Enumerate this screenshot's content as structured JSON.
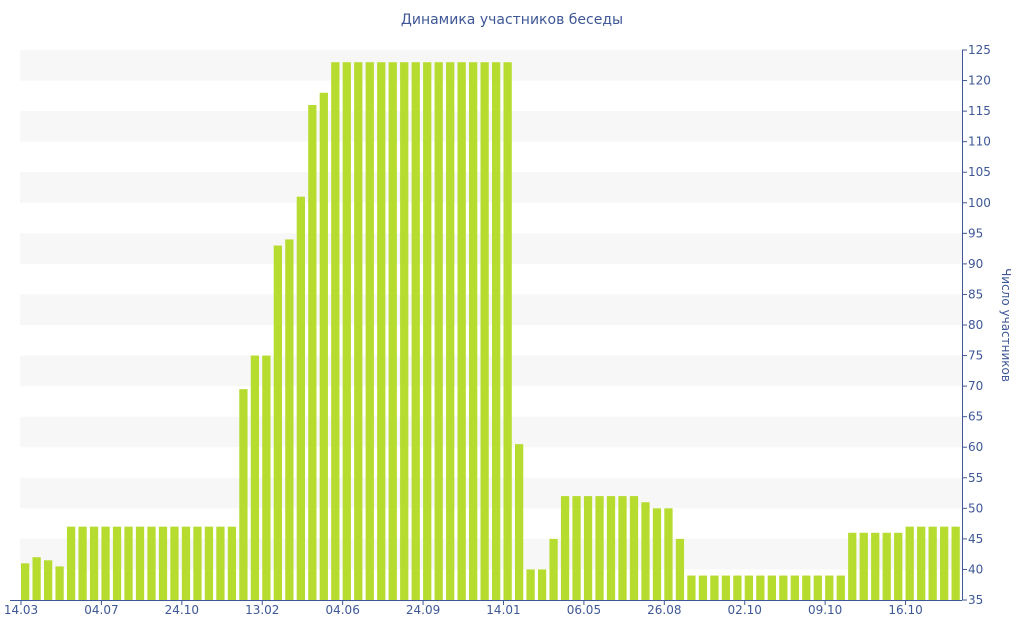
{
  "chart_data": {
    "type": "bar",
    "title": "Динамика участников беседы",
    "xlabel": "",
    "ylabel": "Число участников",
    "ylim": [
      35,
      125
    ],
    "y_ticks": [
      35,
      40,
      45,
      50,
      55,
      60,
      65,
      70,
      75,
      80,
      85,
      90,
      95,
      100,
      105,
      110,
      115,
      120,
      125
    ],
    "y_axis_side": "right",
    "grid": "alternating horizontal bands",
    "bar_color": "#b5dc2e",
    "band_color": "#f7f7f7",
    "text_color": "#3e5796",
    "x_tick_labels": [
      {
        "label": "14.03",
        "index": 0
      },
      {
        "label": "04.07",
        "index": 7
      },
      {
        "label": "24.10",
        "index": 14
      },
      {
        "label": "13.02",
        "index": 21
      },
      {
        "label": "04.06",
        "index": 28
      },
      {
        "label": "24.09",
        "index": 35
      },
      {
        "label": "14.01",
        "index": 42
      },
      {
        "label": "06.05",
        "index": 49
      },
      {
        "label": "26.08",
        "index": 56
      },
      {
        "label": "02.10",
        "index": 63
      },
      {
        "label": "09.10",
        "index": 70
      },
      {
        "label": "16.10",
        "index": 77
      }
    ],
    "values": [
      41,
      42,
      41.5,
      40.5,
      47,
      47,
      47,
      47,
      47,
      47,
      47,
      47,
      47,
      47,
      47,
      47,
      47,
      47,
      47,
      69.5,
      75,
      75,
      93,
      94,
      101,
      116,
      118,
      123,
      123,
      123,
      123,
      123,
      123,
      123,
      123,
      123,
      123,
      123,
      123,
      123,
      123,
      123,
      123,
      60.5,
      40,
      40,
      45,
      52,
      52,
      52,
      52,
      52,
      52,
      52,
      51,
      50,
      50,
      45,
      39,
      39,
      39,
      39,
      39,
      39,
      39,
      39,
      39,
      39,
      39,
      39,
      39,
      39,
      46,
      46,
      46,
      46,
      46,
      47,
      47,
      47,
      47,
      47
    ]
  }
}
